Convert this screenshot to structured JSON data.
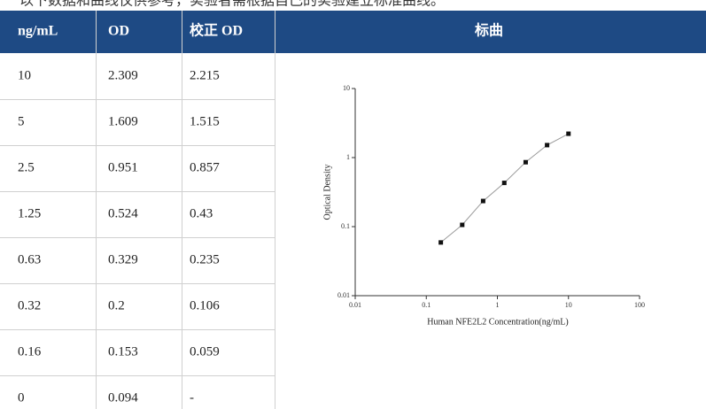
{
  "note": "以下数据和曲线仅供参考，实验者需根据自己的实验建立标准曲线。",
  "table": {
    "headers": [
      "ng/mL",
      "OD",
      "校正 OD",
      "标曲"
    ],
    "rows": [
      [
        10,
        2.309,
        2.215
      ],
      [
        5,
        1.609,
        1.515
      ],
      [
        2.5,
        0.951,
        0.857
      ],
      [
        1.25,
        0.524,
        0.43
      ],
      [
        0.63,
        0.329,
        0.235
      ],
      [
        0.32,
        0.2,
        0.106
      ],
      [
        0.16,
        0.153,
        0.059
      ],
      [
        0,
        0.094,
        "-"
      ]
    ]
  },
  "chart_data": {
    "type": "scatter",
    "x_label": "Human NFE2L2 Concentration(ng/mL)",
    "y_label": "Optical Density",
    "x": [
      0.16,
      0.32,
      0.63,
      1.25,
      2.5,
      5,
      10
    ],
    "values": [
      0.059,
      0.106,
      0.235,
      0.43,
      0.857,
      1.515,
      2.215
    ],
    "color": "#111111",
    "curve_color": "#999999",
    "x_log": true,
    "y_log": true,
    "xlim": [
      0.01,
      100
    ],
    "ylim": [
      0.01,
      10
    ],
    "xticks": [
      0.01,
      0.1,
      1,
      10,
      100
    ],
    "yticks": [
      0.01,
      0.1,
      1,
      10
    ]
  }
}
